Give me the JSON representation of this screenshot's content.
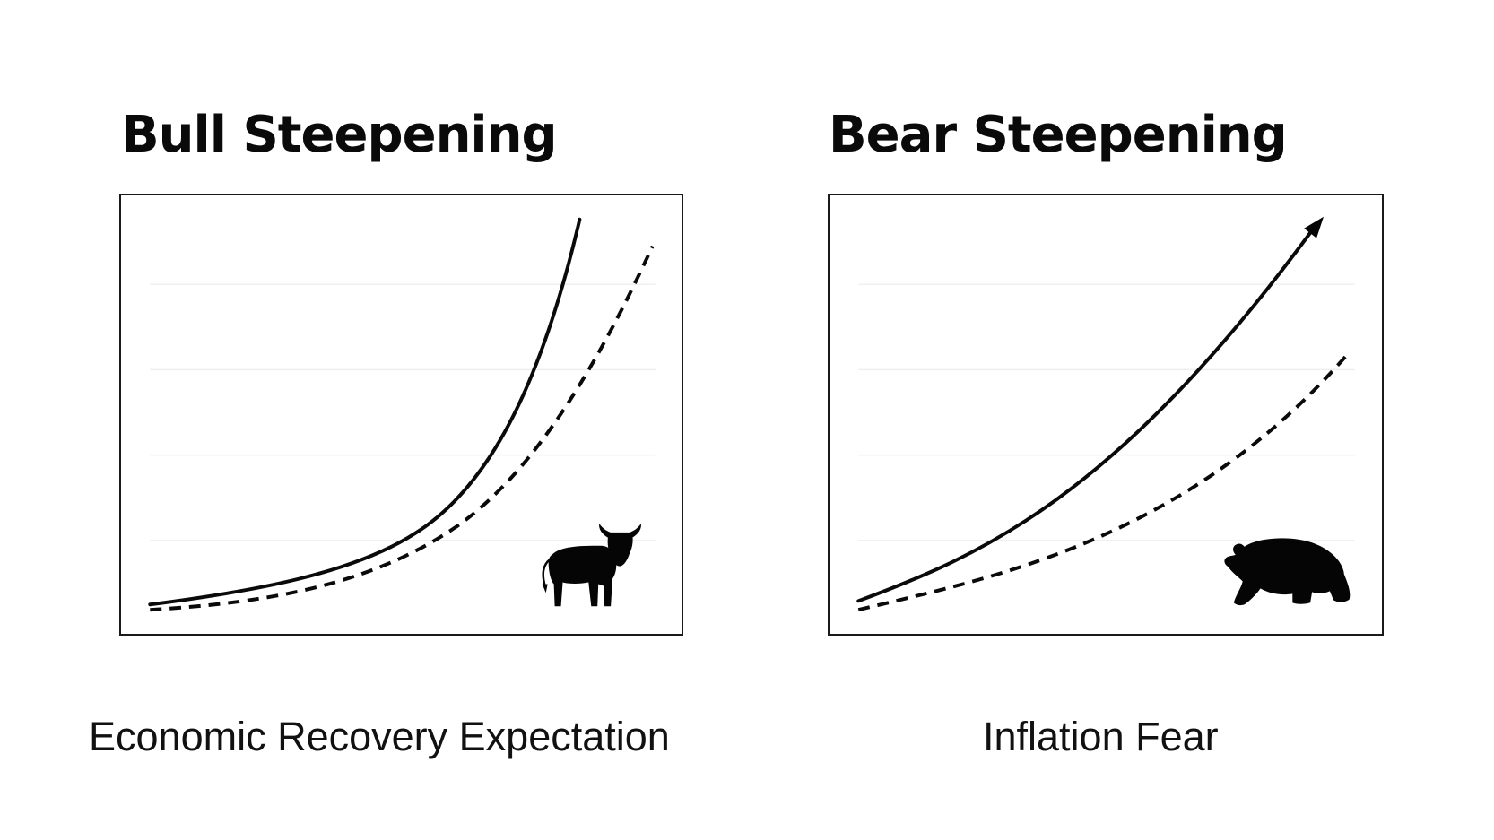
{
  "panels": [
    {
      "id": "bull",
      "title": "Bull Steepening",
      "caption": "Economic Recovery Expectation",
      "icon": "bull-icon"
    },
    {
      "id": "bear",
      "title": "Bear Steepening",
      "caption": "Inflation Fear",
      "icon": "bear-icon"
    }
  ],
  "colors": {
    "ink": "#0a0a0a",
    "gridline": "#eeeeee",
    "background": "#ffffff"
  }
}
